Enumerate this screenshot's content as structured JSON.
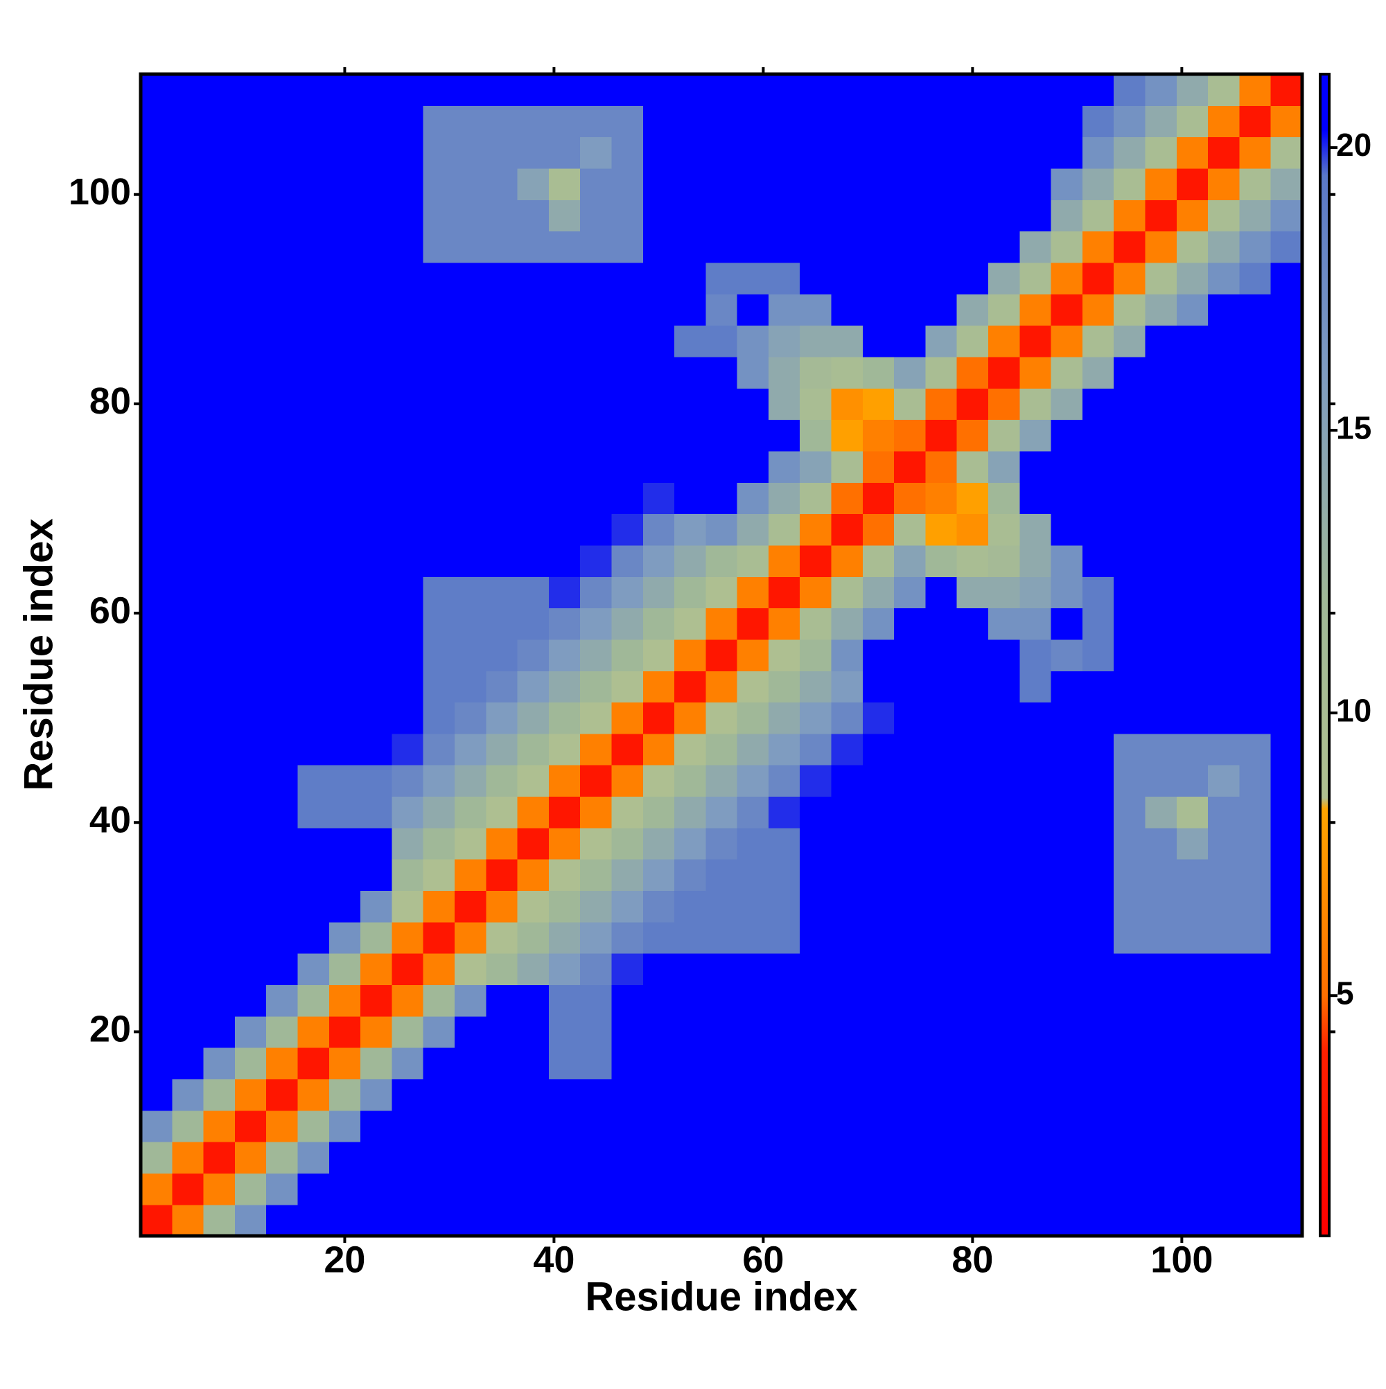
{
  "chart_data": {
    "type": "heatmap",
    "xlabel": "Residue index",
    "ylabel": "Residue index",
    "x": [
      2,
      5,
      8,
      11,
      14,
      17,
      20,
      23,
      26,
      29,
      32,
      35,
      38,
      41,
      44,
      47,
      50,
      53,
      56,
      59,
      62,
      65,
      68,
      71,
      74,
      77,
      80,
      83,
      86,
      89,
      92,
      95,
      98,
      101,
      104,
      107,
      110
    ],
    "y": [
      2,
      5,
      8,
      11,
      14,
      17,
      20,
      23,
      26,
      29,
      32,
      35,
      38,
      41,
      44,
      47,
      50,
      53,
      56,
      59,
      62,
      65,
      68,
      71,
      74,
      77,
      80,
      83,
      86,
      89,
      92,
      95,
      98,
      101,
      104,
      107,
      110
    ],
    "xlim": [
      0.5,
      111.5
    ],
    "ylim": [
      0.5,
      111.5
    ],
    "xticks": [
      20,
      40,
      60,
      80,
      100
    ],
    "yticks": [
      20,
      40,
      60,
      80,
      100
    ],
    "zlim": [
      0.75,
      21.3
    ],
    "zticks": [
      5,
      10,
      15,
      20
    ],
    "colorscale": [
      [
        0.75,
        "#ff0000"
      ],
      [
        4,
        "#ff2000"
      ],
      [
        5,
        "#ff7000"
      ],
      [
        8.3,
        "#ffa500"
      ],
      [
        8.5,
        "#b0c090"
      ],
      [
        12,
        "#a0b898"
      ],
      [
        16,
        "#7f9cc0"
      ],
      [
        19.5,
        "#5a78c8"
      ],
      [
        20.3,
        "#0000ff"
      ],
      [
        21.3,
        "#0000ff"
      ]
    ],
    "values": [
      [
        3,
        6,
        12,
        17,
        21,
        21,
        21,
        21,
        21,
        21,
        21,
        21,
        21,
        21,
        21,
        21,
        21,
        21,
        21,
        21,
        21,
        21,
        21,
        21,
        21,
        21,
        21,
        21,
        21,
        21,
        21,
        21,
        21,
        21,
        21,
        21,
        21
      ],
      [
        6,
        3,
        6,
        12,
        17,
        21,
        21,
        21,
        21,
        21,
        21,
        21,
        21,
        21,
        21,
        21,
        21,
        21,
        21,
        21,
        21,
        21,
        21,
        21,
        21,
        21,
        21,
        21,
        21,
        21,
        21,
        21,
        21,
        21,
        21,
        21,
        21
      ],
      [
        12,
        6,
        3,
        6,
        12,
        17,
        21,
        21,
        21,
        21,
        21,
        21,
        21,
        21,
        21,
        21,
        21,
        21,
        21,
        21,
        21,
        21,
        21,
        21,
        21,
        21,
        21,
        21,
        21,
        21,
        21,
        21,
        21,
        21,
        21,
        21,
        21
      ],
      [
        17,
        12,
        6,
        3,
        6,
        12,
        17,
        21,
        21,
        21,
        21,
        21,
        21,
        21,
        21,
        21,
        21,
        21,
        21,
        21,
        21,
        21,
        21,
        21,
        21,
        21,
        21,
        21,
        21,
        21,
        21,
        21,
        21,
        21,
        21,
        21,
        21
      ],
      [
        21,
        17,
        12,
        6,
        3,
        6,
        12,
        17,
        21,
        21,
        21,
        21,
        21,
        21,
        21,
        21,
        21,
        21,
        21,
        21,
        21,
        21,
        21,
        21,
        21,
        21,
        21,
        21,
        21,
        21,
        21,
        21,
        21,
        21,
        21,
        21,
        21
      ],
      [
        21,
        21,
        17,
        12,
        6,
        3,
        6,
        12,
        17,
        21,
        21,
        21,
        21,
        19,
        19,
        21,
        21,
        21,
        21,
        21,
        21,
        21,
        21,
        21,
        21,
        21,
        21,
        21,
        21,
        21,
        21,
        21,
        21,
        21,
        21,
        21,
        21
      ],
      [
        21,
        21,
        21,
        17,
        12,
        6,
        3,
        6,
        12,
        17,
        21,
        21,
        21,
        19,
        19,
        21,
        21,
        21,
        21,
        21,
        21,
        21,
        21,
        21,
        21,
        21,
        21,
        21,
        21,
        21,
        21,
        21,
        21,
        21,
        21,
        21,
        21
      ],
      [
        21,
        21,
        21,
        21,
        17,
        12,
        6,
        3,
        6,
        12,
        17,
        21,
        21,
        19,
        19,
        21,
        21,
        21,
        21,
        21,
        21,
        21,
        21,
        21,
        21,
        21,
        21,
        21,
        21,
        21,
        21,
        21,
        21,
        21,
        21,
        21,
        21
      ],
      [
        21,
        21,
        21,
        21,
        21,
        17,
        12,
        6,
        3,
        6,
        9,
        12,
        14,
        16,
        18,
        20,
        21,
        21,
        21,
        21,
        21,
        21,
        21,
        21,
        21,
        21,
        21,
        21,
        21,
        21,
        21,
        21,
        21,
        21,
        21,
        21,
        21
      ],
      [
        21,
        21,
        21,
        21,
        21,
        21,
        17,
        12,
        6,
        3,
        6,
        9,
        12,
        14,
        16,
        18,
        19,
        19,
        19,
        19,
        19,
        21,
        21,
        21,
        21,
        21,
        21,
        21,
        21,
        21,
        21,
        18,
        18,
        18,
        18,
        18,
        21
      ],
      [
        21,
        21,
        21,
        21,
        21,
        21,
        21,
        17,
        9,
        6,
        3,
        6,
        9,
        12,
        14,
        16,
        18,
        19,
        19,
        19,
        19,
        21,
        21,
        21,
        21,
        21,
        21,
        21,
        21,
        21,
        21,
        18,
        18,
        18,
        18,
        18,
        21
      ],
      [
        21,
        21,
        21,
        21,
        21,
        21,
        21,
        21,
        12,
        9,
        6,
        3,
        6,
        9,
        12,
        14,
        16,
        18,
        19,
        19,
        19,
        21,
        21,
        21,
        21,
        21,
        21,
        21,
        21,
        21,
        21,
        18,
        18,
        18,
        18,
        18,
        21
      ],
      [
        21,
        21,
        21,
        21,
        21,
        21,
        21,
        21,
        14,
        12,
        9,
        6,
        3,
        6,
        9,
        12,
        14,
        16,
        18,
        19,
        19,
        21,
        21,
        21,
        21,
        21,
        21,
        21,
        21,
        21,
        21,
        18,
        18,
        15,
        18,
        18,
        21
      ],
      [
        21,
        21,
        21,
        21,
        21,
        19,
        19,
        19,
        16,
        14,
        12,
        9,
        6,
        3,
        6,
        9,
        12,
        14,
        16,
        18,
        20,
        21,
        21,
        21,
        21,
        21,
        21,
        21,
        21,
        21,
        21,
        18,
        14,
        10,
        18,
        18,
        21
      ],
      [
        21,
        21,
        21,
        21,
        21,
        19,
        19,
        19,
        18,
        16,
        14,
        12,
        9,
        6,
        3,
        6,
        9,
        12,
        14,
        16,
        18,
        20,
        21,
        21,
        21,
        21,
        21,
        21,
        21,
        21,
        21,
        18,
        18,
        18,
        16,
        18,
        21
      ],
      [
        21,
        21,
        21,
        21,
        21,
        21,
        21,
        21,
        20,
        18,
        16,
        14,
        12,
        9,
        6,
        3,
        6,
        9,
        12,
        14,
        16,
        18,
        20,
        21,
        21,
        21,
        21,
        21,
        21,
        21,
        21,
        18,
        18,
        18,
        18,
        18,
        21
      ],
      [
        21,
        21,
        21,
        21,
        21,
        21,
        21,
        21,
        21,
        19,
        18,
        16,
        14,
        12,
        9,
        6,
        3,
        6,
        9,
        12,
        14,
        16,
        18,
        20,
        21,
        21,
        21,
        21,
        21,
        21,
        21,
        21,
        21,
        21,
        21,
        21,
        21
      ],
      [
        21,
        21,
        21,
        21,
        21,
        21,
        21,
        21,
        21,
        19,
        19,
        18,
        16,
        14,
        12,
        9,
        6,
        3,
        6,
        9,
        12,
        14,
        16,
        21,
        21,
        21,
        21,
        21,
        19,
        21,
        21,
        21,
        21,
        21,
        21,
        21,
        21
      ],
      [
        21,
        21,
        21,
        21,
        21,
        21,
        21,
        21,
        21,
        19,
        19,
        19,
        18,
        16,
        14,
        12,
        9,
        6,
        3,
        6,
        9,
        12,
        17,
        21,
        21,
        21,
        21,
        21,
        19,
        18,
        19,
        21,
        21,
        21,
        21,
        21,
        21
      ],
      [
        21,
        21,
        21,
        21,
        21,
        21,
        21,
        21,
        21,
        19,
        19,
        19,
        19,
        18,
        16,
        14,
        12,
        9,
        6,
        3,
        6,
        10,
        14,
        17,
        21,
        21,
        21,
        17,
        17,
        21,
        19,
        21,
        21,
        21,
        21,
        21,
        21
      ],
      [
        21,
        21,
        21,
        21,
        21,
        21,
        21,
        21,
        21,
        19,
        19,
        19,
        19,
        20,
        18,
        16,
        14,
        12,
        9,
        6,
        3,
        6,
        10,
        14,
        17,
        21,
        14,
        14,
        15,
        17,
        19,
        21,
        21,
        21,
        21,
        21,
        21
      ],
      [
        21,
        21,
        21,
        21,
        21,
        21,
        21,
        21,
        21,
        21,
        21,
        21,
        21,
        21,
        20,
        18,
        16,
        14,
        12,
        10,
        6,
        3,
        6,
        10,
        15,
        12,
        10,
        11,
        14,
        17,
        21,
        21,
        21,
        21,
        21,
        21,
        21
      ],
      [
        21,
        21,
        21,
        21,
        21,
        21,
        21,
        21,
        21,
        21,
        21,
        21,
        21,
        21,
        21,
        20,
        18,
        16,
        17,
        14,
        10,
        6,
        3,
        5,
        10,
        8,
        7,
        10,
        14,
        21,
        21,
        21,
        21,
        21,
        21,
        21,
        21
      ],
      [
        21,
        21,
        21,
        21,
        21,
        21,
        21,
        21,
        21,
        21,
        21,
        21,
        21,
        21,
        21,
        21,
        20,
        21,
        21,
        17,
        14,
        10,
        5,
        3,
        5,
        6,
        8,
        12,
        21,
        21,
        21,
        21,
        21,
        21,
        21,
        21,
        21
      ],
      [
        21,
        21,
        21,
        21,
        21,
        21,
        21,
        21,
        21,
        21,
        21,
        21,
        21,
        21,
        21,
        21,
        21,
        21,
        21,
        21,
        17,
        15,
        10,
        5,
        3,
        5,
        10,
        15,
        21,
        21,
        21,
        21,
        21,
        21,
        21,
        21,
        21
      ],
      [
        21,
        21,
        21,
        21,
        21,
        21,
        21,
        21,
        21,
        21,
        21,
        21,
        21,
        21,
        21,
        21,
        21,
        21,
        21,
        21,
        21,
        12,
        8,
        6,
        5,
        3,
        5,
        10,
        15,
        21,
        21,
        21,
        21,
        21,
        21,
        21,
        21
      ],
      [
        21,
        21,
        21,
        21,
        21,
        21,
        21,
        21,
        21,
        21,
        21,
        21,
        21,
        21,
        21,
        21,
        21,
        21,
        21,
        21,
        14,
        10,
        7,
        8,
        10,
        5,
        3,
        5,
        10,
        14,
        21,
        21,
        21,
        21,
        21,
        21,
        21
      ],
      [
        21,
        21,
        21,
        21,
        21,
        21,
        21,
        21,
        21,
        21,
        21,
        21,
        21,
        21,
        21,
        21,
        21,
        21,
        21,
        17,
        14,
        11,
        10,
        12,
        15,
        10,
        5,
        3,
        6,
        10,
        14,
        21,
        21,
        21,
        21,
        21,
        21
      ],
      [
        21,
        21,
        21,
        21,
        21,
        21,
        21,
        21,
        21,
        21,
        21,
        21,
        21,
        21,
        21,
        21,
        21,
        19,
        19,
        17,
        15,
        14,
        14,
        21,
        21,
        15,
        10,
        6,
        3,
        6,
        10,
        14,
        21,
        21,
        21,
        21,
        21
      ],
      [
        21,
        21,
        21,
        21,
        21,
        21,
        21,
        21,
        21,
        21,
        21,
        21,
        21,
        21,
        21,
        21,
        21,
        21,
        18,
        21,
        17,
        17,
        21,
        21,
        21,
        21,
        14,
        10,
        6,
        3,
        6,
        10,
        14,
        17,
        21,
        21,
        21
      ],
      [
        21,
        21,
        21,
        21,
        21,
        21,
        21,
        21,
        21,
        21,
        21,
        21,
        21,
        21,
        21,
        21,
        21,
        21,
        19,
        19,
        19,
        21,
        21,
        21,
        21,
        21,
        21,
        14,
        10,
        6,
        3,
        6,
        10,
        14,
        17,
        19,
        21
      ],
      [
        21,
        21,
        21,
        21,
        21,
        21,
        21,
        21,
        21,
        18,
        18,
        18,
        18,
        18,
        18,
        18,
        21,
        21,
        21,
        21,
        21,
        21,
        21,
        21,
        21,
        21,
        21,
        21,
        14,
        10,
        6,
        3,
        6,
        10,
        14,
        17,
        19
      ],
      [
        21,
        21,
        21,
        21,
        21,
        21,
        21,
        21,
        21,
        18,
        18,
        18,
        18,
        14,
        18,
        18,
        21,
        21,
        21,
        21,
        21,
        21,
        21,
        21,
        21,
        21,
        21,
        21,
        21,
        14,
        10,
        6,
        3,
        6,
        10,
        14,
        17
      ],
      [
        21,
        21,
        21,
        21,
        21,
        21,
        21,
        21,
        21,
        18,
        18,
        18,
        15,
        10,
        18,
        18,
        21,
        21,
        21,
        21,
        21,
        21,
        21,
        21,
        21,
        21,
        21,
        21,
        21,
        17,
        14,
        10,
        6,
        3,
        6,
        10,
        14
      ],
      [
        21,
        21,
        21,
        21,
        21,
        21,
        21,
        21,
        21,
        18,
        18,
        18,
        18,
        18,
        16,
        18,
        21,
        21,
        21,
        21,
        21,
        21,
        21,
        21,
        21,
        21,
        21,
        21,
        21,
        21,
        17,
        14,
        10,
        6,
        3,
        6,
        10
      ],
      [
        21,
        21,
        21,
        21,
        21,
        21,
        21,
        21,
        21,
        18,
        18,
        18,
        18,
        18,
        18,
        18,
        21,
        21,
        21,
        21,
        21,
        21,
        21,
        21,
        21,
        21,
        21,
        21,
        21,
        21,
        19,
        17,
        14,
        10,
        6,
        3,
        6
      ],
      [
        21,
        21,
        21,
        21,
        21,
        21,
        21,
        21,
        21,
        21,
        21,
        21,
        21,
        21,
        21,
        21,
        21,
        21,
        21,
        21,
        21,
        21,
        21,
        21,
        21,
        21,
        21,
        21,
        21,
        21,
        21,
        19,
        17,
        14,
        10,
        6,
        3
      ]
    ]
  }
}
